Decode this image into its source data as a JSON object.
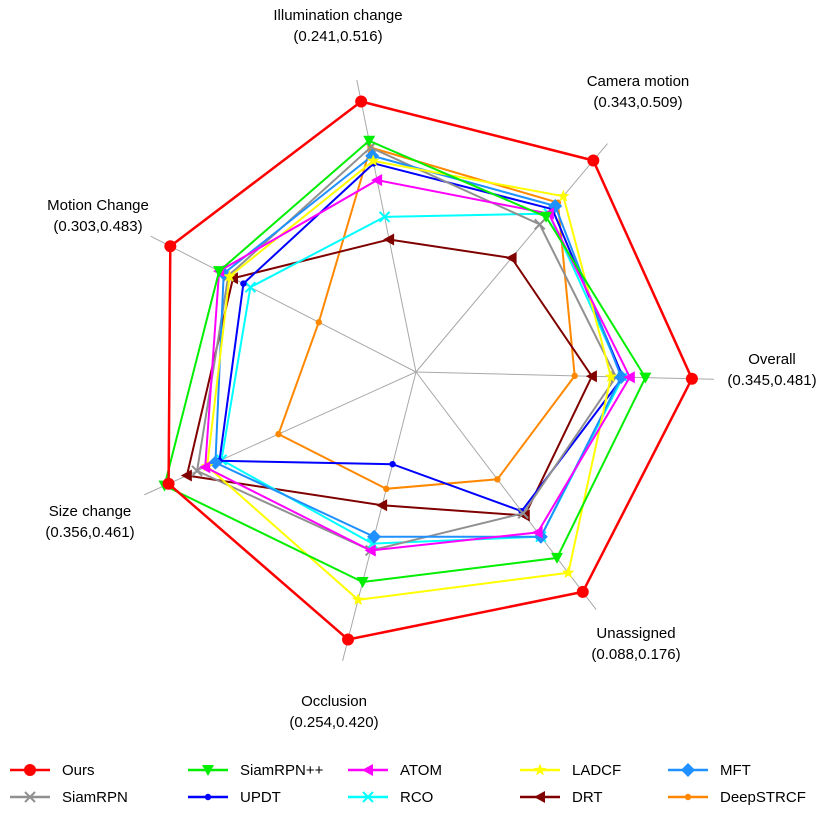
{
  "chart_data": {
    "type": "radar",
    "title": "",
    "range_rule": "each axis spans its own [min,max] range shown under the axis label; outer ring = max",
    "axes": [
      {
        "name": "Overall",
        "range_label": "(0.345,0.481)",
        "min": 0.345,
        "max": 0.481
      },
      {
        "name": "Camera motion",
        "range_label": "(0.343,0.509)",
        "min": 0.343,
        "max": 0.509
      },
      {
        "name": "Illumination change",
        "range_label": "(0.241,0.516)",
        "min": 0.241,
        "max": 0.516
      },
      {
        "name": "Motion Change",
        "range_label": "(0.303,0.483)",
        "min": 0.303,
        "max": 0.483
      },
      {
        "name": "Size change",
        "range_label": "(0.356,0.461)",
        "min": 0.356,
        "max": 0.461
      },
      {
        "name": "Occlusion",
        "range_label": "(0.254,0.420)",
        "min": 0.254,
        "max": 0.42
      },
      {
        "name": "Unassigned",
        "range_label": "(0.088,0.176)",
        "min": 0.088,
        "max": 0.176
      }
    ],
    "series": [
      {
        "name": "Ours",
        "color": "#ff0000",
        "marker": "circle",
        "values": [
          0.481,
          0.509,
          0.516,
          0.483,
          0.459,
          0.42,
          0.176
        ]
      },
      {
        "name": "SiamRPN++",
        "color": "#00ee00",
        "marker": "triangle-down",
        "values": [
          0.454,
          0.457,
          0.469,
          0.441,
          0.461,
          0.378,
          0.16
        ]
      },
      {
        "name": "ATOM",
        "color": "#ff00ff",
        "marker": "triangle-left",
        "values": [
          0.445,
          0.46,
          0.422,
          0.441,
          0.441,
          0.355,
          0.148
        ]
      },
      {
        "name": "LADCF",
        "color": "#ffff00",
        "marker": "star",
        "values": [
          0.434,
          0.476,
          0.445,
          0.432,
          0.44,
          0.391,
          0.167
        ]
      },
      {
        "name": "MFT",
        "color": "#1e90ff",
        "marker": "diamond",
        "values": [
          0.44,
          0.467,
          0.451,
          0.437,
          0.436,
          0.345,
          0.15
        ]
      },
      {
        "name": "SiamRPN",
        "color": "#909090",
        "marker": "x",
        "values": [
          0.437,
          0.45,
          0.461,
          0.433,
          0.445,
          0.355,
          0.139
        ]
      },
      {
        "name": "UPDT",
        "color": "#0000ff",
        "marker": "circle-small",
        "values": [
          0.441,
          0.464,
          0.442,
          0.42,
          0.434,
          0.292,
          0.138
        ]
      },
      {
        "name": "RCO",
        "color": "#00ffff",
        "marker": "x",
        "values": [
          0.441,
          0.46,
          0.378,
          0.414,
          0.433,
          0.35,
          0.15
        ]
      },
      {
        "name": "DRT",
        "color": "#800000",
        "marker": "triangle-left",
        "values": [
          0.423,
          0.419,
          0.351,
          0.429,
          0.45,
          0.322,
          0.14
        ]
      },
      {
        "name": "DeepSTRCF",
        "color": "#ff8800",
        "marker": "circle-small",
        "values": [
          0.413,
          0.47,
          0.461,
          0.355,
          0.405,
          0.31,
          0.123
        ]
      }
    ],
    "legend": {
      "placement": "bottom",
      "columns": 5
    }
  }
}
